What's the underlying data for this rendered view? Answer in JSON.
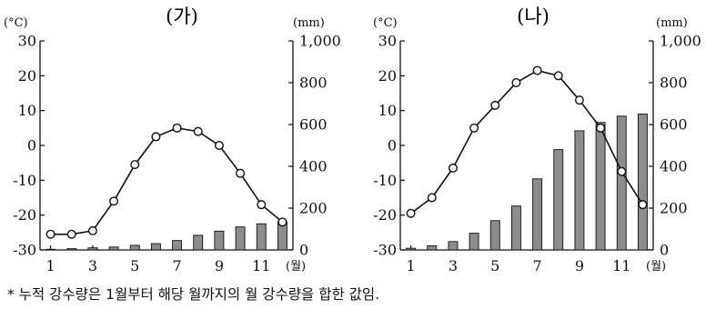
{
  "chart_data": [
    {
      "type": "bar+line",
      "title": "(가)",
      "temp_unit": "(°C)",
      "precip_unit": "(mm)",
      "month_unit": "(월)",
      "left_ticks": [
        "30",
        "20",
        "10",
        "0",
        "-10",
        "-20",
        "-30"
      ],
      "right_ticks": [
        "1,000",
        "800",
        "600",
        "400",
        "200",
        "0"
      ],
      "x_ticks": [
        "1",
        "3",
        "5",
        "7",
        "9",
        "11"
      ],
      "months": [
        1,
        2,
        3,
        4,
        5,
        6,
        7,
        8,
        9,
        10,
        11,
        12
      ],
      "ylim_temperature": [
        -30,
        30
      ],
      "ylim_cumulative_precipitation": [
        0,
        1000
      ],
      "series": [
        {
          "values": [
            -25.5,
            -25.5,
            -24.5,
            -16,
            -5.5,
            2.5,
            5,
            4,
            0,
            -8,
            -17,
            -22
          ]
        },
        {
          "values": [
            3,
            6,
            10,
            14,
            22,
            30,
            45,
            70,
            90,
            110,
            125,
            135
          ]
        }
      ]
    },
    {
      "type": "bar+line",
      "title": "(나)",
      "temp_unit": "(°C)",
      "precip_unit": "(mm)",
      "month_unit": "(월)",
      "left_ticks": [
        "30",
        "20",
        "10",
        "0",
        "-10",
        "-20",
        "-30"
      ],
      "right_ticks": [
        "1,000",
        "800",
        "600",
        "400",
        "200",
        "0"
      ],
      "x_ticks": [
        "1",
        "3",
        "5",
        "7",
        "9",
        "11"
      ],
      "months": [
        1,
        2,
        3,
        4,
        5,
        6,
        7,
        8,
        9,
        10,
        11,
        12
      ],
      "ylim_temperature": [
        -30,
        30
      ],
      "ylim_cumulative_precipitation": [
        0,
        1000
      ],
      "series": [
        {
          "values": [
            -19.5,
            -15,
            -6.5,
            5,
            11.5,
            18,
            21.5,
            20,
            13,
            5,
            -7.5,
            -17
          ]
        },
        {
          "values": [
            8,
            20,
            40,
            80,
            140,
            210,
            340,
            480,
            570,
            610,
            640,
            650
          ]
        }
      ]
    }
  ],
  "footnote": "* 누적 강수량은 1월부터 해당 월까지의 월 강수량을 합한 값임."
}
